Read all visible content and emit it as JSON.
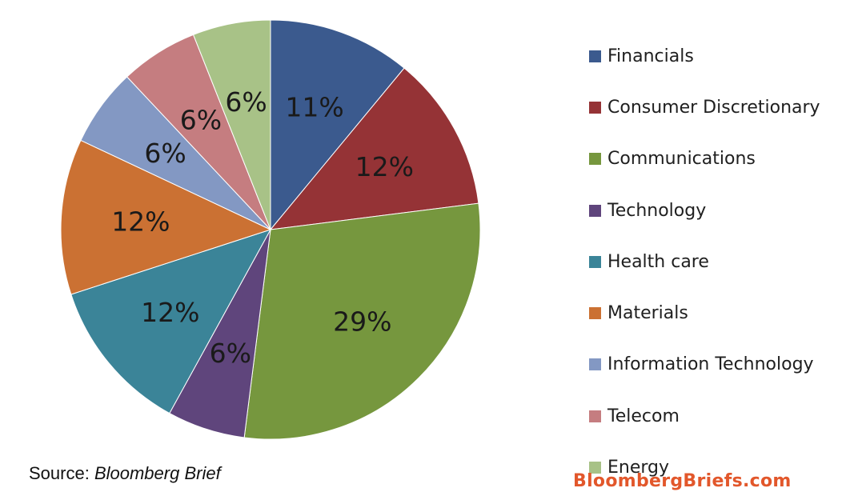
{
  "chart_data": {
    "type": "pie",
    "categories": [
      "Financials",
      "Consumer Discretionary",
      "Communications",
      "Technology",
      "Health care",
      "Materials",
      "Information Technology",
      "Telecom",
      "Energy"
    ],
    "values": [
      11,
      12,
      29,
      6,
      12,
      12,
      6,
      6,
      6
    ],
    "data_labels": [
      "11%",
      "12%",
      "29%",
      "6%",
      "12%",
      "12%",
      "6%",
      "6%",
      "6%"
    ],
    "colors": [
      "#3B5A8E",
      "#953336",
      "#76973E",
      "#5F457C",
      "#3B8498",
      "#CB7133",
      "#8398C3",
      "#C57D80",
      "#A8C287"
    ],
    "legend_position": "right",
    "start_angle": "12 o'clock, clockwise"
  },
  "source": {
    "prefix": "Source: ",
    "name": "Bloomberg Brief"
  },
  "watermark": {
    "text": "BloombergBriefs.com",
    "color": "#E2572B"
  }
}
